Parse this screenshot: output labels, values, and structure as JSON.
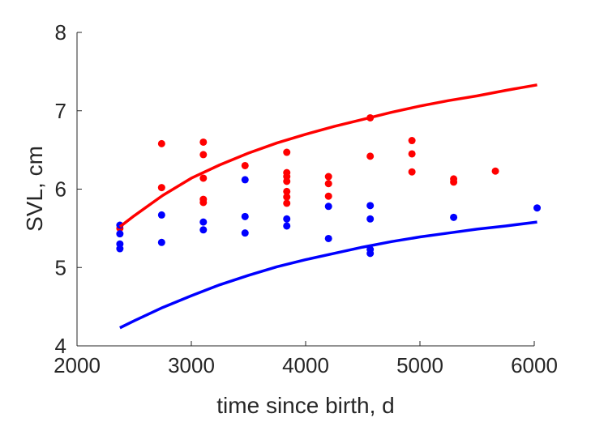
{
  "chart_data": {
    "type": "scatter",
    "xlabel": "time since birth, d",
    "ylabel": "SVL, cm",
    "xlim": [
      2000,
      6000
    ],
    "ylim": [
      4,
      8
    ],
    "xticks": [
      2000,
      3000,
      4000,
      5000,
      6000
    ],
    "yticks": [
      4,
      5,
      6,
      7,
      8
    ],
    "grid": false,
    "series": [
      {
        "kind": "points",
        "color": "#ff0000",
        "points": [
          [
            2375,
            5.5
          ],
          [
            2740,
            6.58
          ],
          [
            2740,
            6.02
          ],
          [
            3105,
            6.6
          ],
          [
            3105,
            6.44
          ],
          [
            3105,
            6.14
          ],
          [
            3105,
            5.87
          ],
          [
            3105,
            5.83
          ],
          [
            3470,
            6.3
          ],
          [
            3835,
            6.47
          ],
          [
            3835,
            6.21
          ],
          [
            3835,
            6.16
          ],
          [
            3835,
            6.1
          ],
          [
            3835,
            5.97
          ],
          [
            3835,
            5.9
          ],
          [
            3835,
            5.82
          ],
          [
            4200,
            6.16
          ],
          [
            4200,
            6.07
          ],
          [
            4200,
            5.91
          ],
          [
            4565,
            6.91
          ],
          [
            4565,
            6.42
          ],
          [
            4930,
            6.62
          ],
          [
            4930,
            6.45
          ],
          [
            4930,
            6.22
          ],
          [
            5295,
            6.13
          ],
          [
            5295,
            6.09
          ],
          [
            5660,
            6.23
          ]
        ]
      },
      {
        "kind": "points",
        "color": "#0000ff",
        "points": [
          [
            2375,
            5.54
          ],
          [
            2375,
            5.43
          ],
          [
            2375,
            5.3
          ],
          [
            2375,
            5.24
          ],
          [
            2740,
            5.67
          ],
          [
            2740,
            5.32
          ],
          [
            3105,
            5.58
          ],
          [
            3105,
            5.48
          ],
          [
            3470,
            6.12
          ],
          [
            3470,
            5.65
          ],
          [
            3470,
            5.44
          ],
          [
            3835,
            5.62
          ],
          [
            3835,
            5.53
          ],
          [
            4200,
            5.78
          ],
          [
            4200,
            5.37
          ],
          [
            4565,
            5.79
          ],
          [
            4565,
            5.62
          ],
          [
            4565,
            5.23
          ],
          [
            4565,
            5.18
          ],
          [
            5295,
            5.64
          ],
          [
            6025,
            5.76
          ]
        ]
      },
      {
        "kind": "line",
        "color": "#ff0000",
        "points": [
          [
            2375,
            5.52
          ],
          [
            2500,
            5.66
          ],
          [
            2750,
            5.92
          ],
          [
            3000,
            6.14
          ],
          [
            3250,
            6.31
          ],
          [
            3500,
            6.46
          ],
          [
            3750,
            6.59
          ],
          [
            4000,
            6.7
          ],
          [
            4250,
            6.8
          ],
          [
            4500,
            6.89
          ],
          [
            4750,
            6.98
          ],
          [
            5000,
            7.06
          ],
          [
            5250,
            7.13
          ],
          [
            5500,
            7.19
          ],
          [
            5750,
            7.26
          ],
          [
            6025,
            7.33
          ]
        ]
      },
      {
        "kind": "line",
        "color": "#0000ff",
        "points": [
          [
            2375,
            4.23
          ],
          [
            2500,
            4.32
          ],
          [
            2750,
            4.49
          ],
          [
            3000,
            4.64
          ],
          [
            3250,
            4.78
          ],
          [
            3500,
            4.9
          ],
          [
            3750,
            5.01
          ],
          [
            4000,
            5.1
          ],
          [
            4250,
            5.18
          ],
          [
            4500,
            5.26
          ],
          [
            4750,
            5.33
          ],
          [
            5000,
            5.39
          ],
          [
            5250,
            5.44
          ],
          [
            5500,
            5.49
          ],
          [
            5750,
            5.53
          ],
          [
            6025,
            5.58
          ]
        ]
      }
    ]
  }
}
